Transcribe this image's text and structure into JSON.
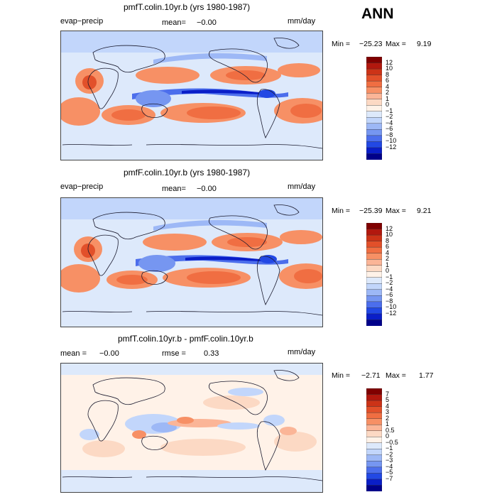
{
  "season": "ANN",
  "panels": [
    {
      "title": "pmfT.colin.10yr.b (yrs 1980-1987)",
      "left_label": "evap−precip",
      "mean_label": "mean=",
      "mean_value": "−0.00",
      "units": "mm/day",
      "min_label": "Min =",
      "min_value": "−25.23",
      "max_label": "Max =",
      "max_value": "9.19",
      "levels": [
        "12",
        "10",
        "8",
        "6",
        "4",
        "2",
        "1",
        "0",
        "−1",
        "−2",
        "−4",
        "−6",
        "−8",
        "−10",
        "−12"
      ],
      "colors": [
        "#800000",
        "#b2180e",
        "#cc3317",
        "#e2502a",
        "#f06e42",
        "#f79065",
        "#fbb597",
        "#fcd9c4",
        "#fff2e8",
        "#dde9fb",
        "#c2d6fb",
        "#9db8f6",
        "#7696f1",
        "#4c6eec",
        "#2248e4",
        "#0a1ec8",
        "#00008a"
      ]
    },
    {
      "title": "pmfF.colin.10yr.b (yrs 1980-1987)",
      "left_label": "evap−precip",
      "mean_label": "mean=",
      "mean_value": "−0.00",
      "units": "mm/day",
      "min_label": "Min =",
      "min_value": "−25.39",
      "max_label": "Max =",
      "max_value": "9.21",
      "levels": [
        "12",
        "10",
        "8",
        "6",
        "4",
        "2",
        "1",
        "0",
        "−1",
        "−2",
        "−4",
        "−6",
        "−8",
        "−10",
        "−12"
      ],
      "colors": [
        "#800000",
        "#b2180e",
        "#cc3317",
        "#e2502a",
        "#f06e42",
        "#f79065",
        "#fbb597",
        "#fcd9c4",
        "#fff2e8",
        "#dde9fb",
        "#c2d6fb",
        "#9db8f6",
        "#7696f1",
        "#4c6eec",
        "#2248e4",
        "#0a1ec8",
        "#00008a"
      ]
    },
    {
      "title": "pmfT.colin.10yr.b - pmfF.colin.10yr.b",
      "left_label": "mean =",
      "mean_label": "",
      "mean_value": "−0.00",
      "rmse_label": "rmse =",
      "rmse_value": "0.33",
      "units": "mm/day",
      "min_label": "Min =",
      "min_value": "−2.71",
      "max_label": "Max =",
      "max_value": "1.77",
      "levels": [
        "7",
        "5",
        "4",
        "3",
        "2",
        "1",
        "0.5",
        "0",
        "−0.5",
        "−1",
        "−2",
        "−3",
        "−4",
        "−5",
        "−7"
      ],
      "colors": [
        "#800000",
        "#b2180e",
        "#cc3317",
        "#e2502a",
        "#f06e42",
        "#f79065",
        "#fbb597",
        "#fcd9c4",
        "#fff2e8",
        "#dde9fb",
        "#c2d6fb",
        "#9db8f6",
        "#7696f1",
        "#4c6eec",
        "#2248e4",
        "#0a1ec8",
        "#00008a"
      ]
    }
  ],
  "chart_data": [
    {
      "type": "heatmap",
      "title": "pmfT.colin.10yr.b (yrs 1980-1987)",
      "variable": "evap−precip",
      "units": "mm/day",
      "mean": -0.0,
      "min": -25.23,
      "max": 9.19,
      "contour_levels": [
        -12,
        -10,
        -8,
        -6,
        -4,
        -2,
        -1,
        0,
        1,
        2,
        4,
        6,
        8,
        10,
        12
      ]
    },
    {
      "type": "heatmap",
      "title": "pmfF.colin.10yr.b (yrs 1980-1987)",
      "variable": "evap−precip",
      "units": "mm/day",
      "mean": -0.0,
      "min": -25.39,
      "max": 9.21,
      "contour_levels": [
        -12,
        -10,
        -8,
        -6,
        -4,
        -2,
        -1,
        0,
        1,
        2,
        4,
        6,
        8,
        10,
        12
      ]
    },
    {
      "type": "heatmap",
      "title": "pmfT.colin.10yr.b - pmfF.colin.10yr.b",
      "units": "mm/day",
      "mean": -0.0,
      "rmse": 0.33,
      "min": -2.71,
      "max": 1.77,
      "contour_levels": [
        -7,
        -5,
        -4,
        -3,
        -2,
        -1,
        -0.5,
        0,
        0.5,
        1,
        2,
        3,
        4,
        5,
        7
      ]
    }
  ]
}
